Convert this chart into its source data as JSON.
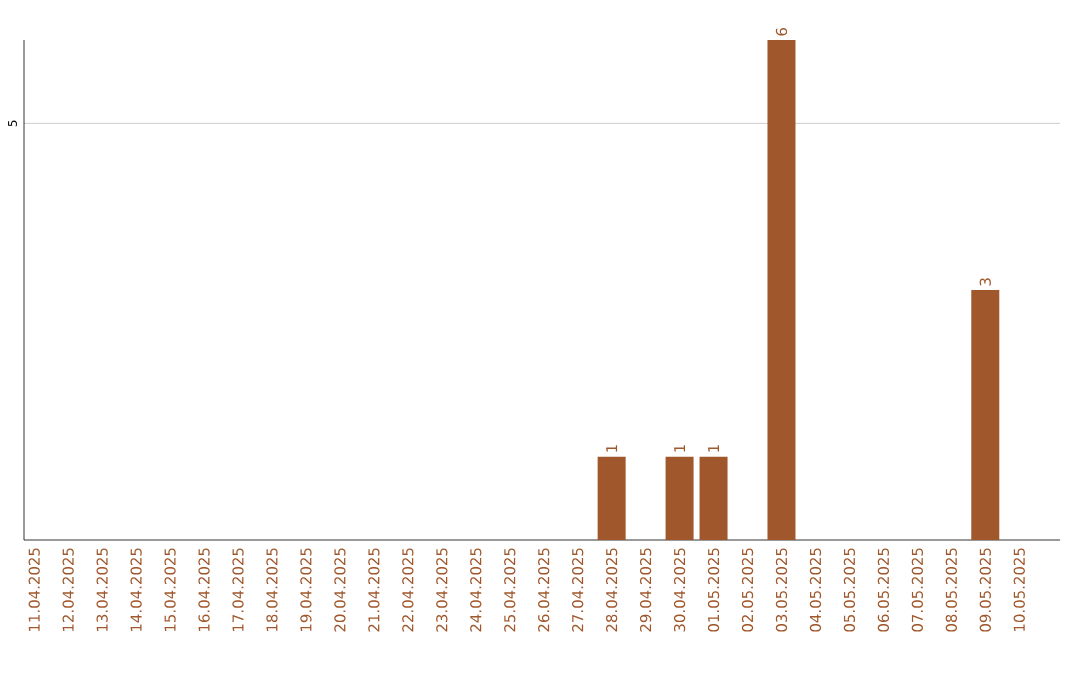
{
  "chart_data": {
    "type": "bar",
    "categories": [
      "11.04.2025",
      "12.04.2025",
      "13.04.2025",
      "14.04.2025",
      "15.04.2025",
      "16.04.2025",
      "17.04.2025",
      "18.04.2025",
      "19.04.2025",
      "20.04.2025",
      "21.04.2025",
      "22.04.2025",
      "23.04.2025",
      "24.04.2025",
      "25.04.2025",
      "26.04.2025",
      "27.04.2025",
      "28.04.2025",
      "29.04.2025",
      "30.04.2025",
      "01.05.2025",
      "02.05.2025",
      "03.05.2025",
      "04.05.2025",
      "05.05.2025",
      "06.05.2025",
      "07.05.2025",
      "08.05.2025",
      "09.05.2025",
      "10.05.2025"
    ],
    "values": [
      null,
      null,
      null,
      null,
      null,
      null,
      null,
      null,
      null,
      null,
      null,
      null,
      null,
      null,
      null,
      null,
      null,
      1,
      null,
      1,
      1,
      null,
      6,
      null,
      null,
      null,
      null,
      null,
      3,
      null
    ],
    "color": "#a0572b",
    "ylim": [
      0,
      6
    ],
    "yticks": [
      5
    ],
    "grid": "y",
    "data_labels": true
  }
}
